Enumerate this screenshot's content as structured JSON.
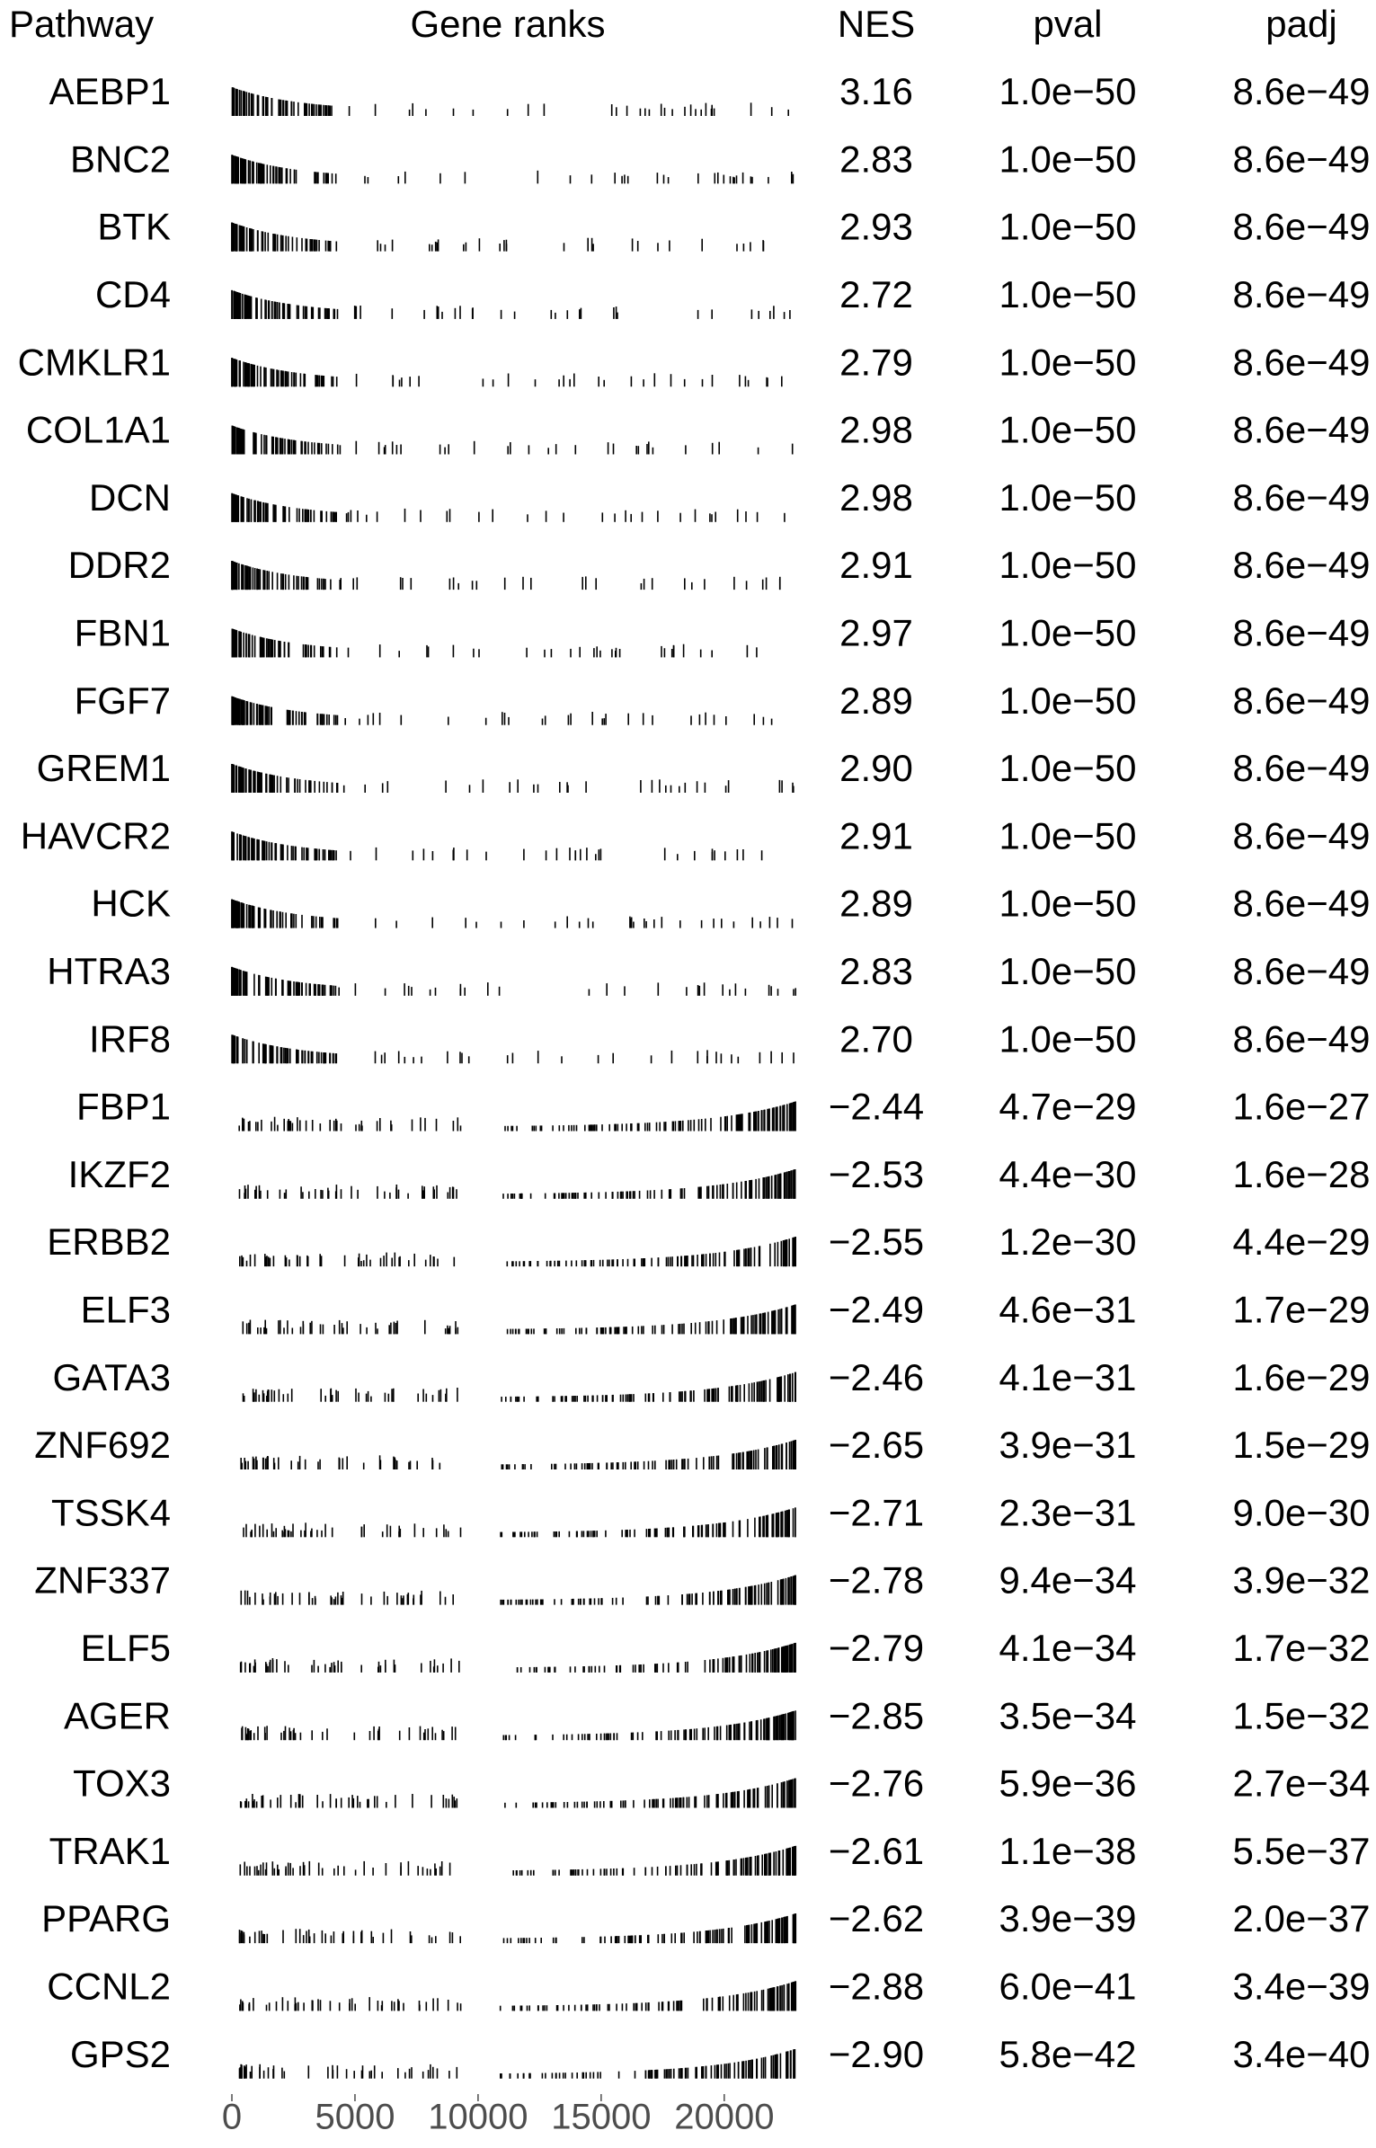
{
  "chart_data": {
    "type": "table",
    "columns": [
      "Pathway",
      "Gene ranks",
      "NES",
      "pval",
      "padj"
    ],
    "x_axis": {
      "ticks": [
        0,
        5000,
        10000,
        15000,
        20000
      ],
      "tick_labels": [
        "0",
        "5000",
        "10000",
        "15000",
        "20000"
      ],
      "range": [
        0,
        23000
      ]
    },
    "rows": [
      {
        "pathway": "AEBP1",
        "nes": "3.16",
        "pval": "1.0e−50",
        "padj": "8.6e−49",
        "direction": "up"
      },
      {
        "pathway": "BNC2",
        "nes": "2.83",
        "pval": "1.0e−50",
        "padj": "8.6e−49",
        "direction": "up"
      },
      {
        "pathway": "BTK",
        "nes": "2.93",
        "pval": "1.0e−50",
        "padj": "8.6e−49",
        "direction": "up"
      },
      {
        "pathway": "CD4",
        "nes": "2.72",
        "pval": "1.0e−50",
        "padj": "8.6e−49",
        "direction": "up"
      },
      {
        "pathway": "CMKLR1",
        "nes": "2.79",
        "pval": "1.0e−50",
        "padj": "8.6e−49",
        "direction": "up"
      },
      {
        "pathway": "COL1A1",
        "nes": "2.98",
        "pval": "1.0e−50",
        "padj": "8.6e−49",
        "direction": "up"
      },
      {
        "pathway": "DCN",
        "nes": "2.98",
        "pval": "1.0e−50",
        "padj": "8.6e−49",
        "direction": "up"
      },
      {
        "pathway": "DDR2",
        "nes": "2.91",
        "pval": "1.0e−50",
        "padj": "8.6e−49",
        "direction": "up"
      },
      {
        "pathway": "FBN1",
        "nes": "2.97",
        "pval": "1.0e−50",
        "padj": "8.6e−49",
        "direction": "up"
      },
      {
        "pathway": "FGF7",
        "nes": "2.89",
        "pval": "1.0e−50",
        "padj": "8.6e−49",
        "direction": "up"
      },
      {
        "pathway": "GREM1",
        "nes": "2.90",
        "pval": "1.0e−50",
        "padj": "8.6e−49",
        "direction": "up"
      },
      {
        "pathway": "HAVCR2",
        "nes": "2.91",
        "pval": "1.0e−50",
        "padj": "8.6e−49",
        "direction": "up"
      },
      {
        "pathway": "HCK",
        "nes": "2.89",
        "pval": "1.0e−50",
        "padj": "8.6e−49",
        "direction": "up"
      },
      {
        "pathway": "HTRA3",
        "nes": "2.83",
        "pval": "1.0e−50",
        "padj": "8.6e−49",
        "direction": "up"
      },
      {
        "pathway": "IRF8",
        "nes": "2.70",
        "pval": "1.0e−50",
        "padj": "8.6e−49",
        "direction": "up"
      },
      {
        "pathway": "FBP1",
        "nes": "−2.44",
        "pval": "4.7e−29",
        "padj": "1.6e−27",
        "direction": "down"
      },
      {
        "pathway": "IKZF2",
        "nes": "−2.53",
        "pval": "4.4e−30",
        "padj": "1.6e−28",
        "direction": "down"
      },
      {
        "pathway": "ERBB2",
        "nes": "−2.55",
        "pval": "1.2e−30",
        "padj": "4.4e−29",
        "direction": "down"
      },
      {
        "pathway": "ELF3",
        "nes": "−2.49",
        "pval": "4.6e−31",
        "padj": "1.7e−29",
        "direction": "down"
      },
      {
        "pathway": "GATA3",
        "nes": "−2.46",
        "pval": "4.1e−31",
        "padj": "1.6e−29",
        "direction": "down"
      },
      {
        "pathway": "ZNF692",
        "nes": "−2.65",
        "pval": "3.9e−31",
        "padj": "1.5e−29",
        "direction": "down"
      },
      {
        "pathway": "TSSK4",
        "nes": "−2.71",
        "pval": "2.3e−31",
        "padj": "9.0e−30",
        "direction": "down"
      },
      {
        "pathway": "ZNF337",
        "nes": "−2.78",
        "pval": "9.4e−34",
        "padj": "3.9e−32",
        "direction": "down"
      },
      {
        "pathway": "ELF5",
        "nes": "−2.79",
        "pval": "4.1e−34",
        "padj": "1.7e−32",
        "direction": "down"
      },
      {
        "pathway": "AGER",
        "nes": "−2.85",
        "pval": "3.5e−34",
        "padj": "1.5e−32",
        "direction": "down"
      },
      {
        "pathway": "TOX3",
        "nes": "−2.76",
        "pval": "5.9e−36",
        "padj": "2.7e−34",
        "direction": "down"
      },
      {
        "pathway": "TRAK1",
        "nes": "−2.61",
        "pval": "1.1e−38",
        "padj": "5.5e−37",
        "direction": "down"
      },
      {
        "pathway": "PPARG",
        "nes": "−2.62",
        "pval": "3.9e−39",
        "padj": "2.0e−37",
        "direction": "down"
      },
      {
        "pathway": "CCNL2",
        "nes": "−2.88",
        "pval": "6.0e−41",
        "padj": "3.4e−39",
        "direction": "down"
      },
      {
        "pathway": "GPS2",
        "nes": "−2.90",
        "pval": "5.8e−42",
        "padj": "3.4e−40",
        "direction": "down"
      }
    ]
  }
}
